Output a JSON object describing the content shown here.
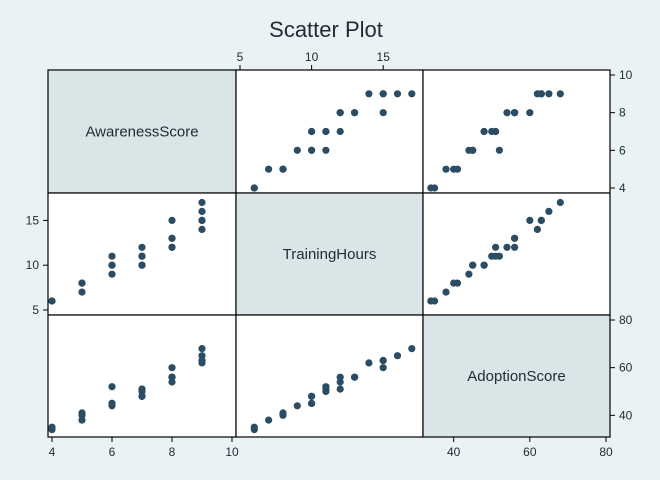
{
  "chart_data": {
    "type": "scatter",
    "title": "Scatter Plot",
    "variables": [
      {
        "name": "AwarenessScore",
        "range": [
          4,
          10
        ],
        "ticks": [
          4,
          6,
          8,
          10
        ]
      },
      {
        "name": "TrainingHours",
        "range": [
          5,
          17.5
        ],
        "ticks": [
          5,
          10,
          15
        ]
      },
      {
        "name": "AdoptionScore",
        "range": [
          33,
          80
        ],
        "ticks": [
          40,
          60,
          80
        ]
      }
    ],
    "axis_labels": {
      "top": {
        "variable": 1,
        "ticks": [
          5,
          10,
          15
        ]
      },
      "right_top": {
        "variable": 0,
        "ticks": [
          4,
          6,
          8,
          10
        ]
      },
      "left_middle": {
        "variable": 1,
        "ticks": [
          5,
          10,
          15
        ]
      },
      "right_bottom": {
        "variable": 2,
        "ticks": [
          40,
          60,
          80
        ]
      },
      "bottom_left": {
        "variable": 0,
        "ticks": [
          4,
          6,
          8,
          10
        ]
      },
      "bottom_right": {
        "variable": 2,
        "ticks": [
          40,
          60,
          80
        ]
      }
    },
    "points": [
      {
        "AwarenessScore": 4,
        "TrainingHours": 6,
        "AdoptionScore": 34
      },
      {
        "AwarenessScore": 4,
        "TrainingHours": 6,
        "AdoptionScore": 35
      },
      {
        "AwarenessScore": 5,
        "TrainingHours": 7,
        "AdoptionScore": 38
      },
      {
        "AwarenessScore": 5,
        "TrainingHours": 8,
        "AdoptionScore": 40
      },
      {
        "AwarenessScore": 5,
        "TrainingHours": 8,
        "AdoptionScore": 41
      },
      {
        "AwarenessScore": 6,
        "TrainingHours": 9,
        "AdoptionScore": 44
      },
      {
        "AwarenessScore": 6,
        "TrainingHours": 10,
        "AdoptionScore": 45
      },
      {
        "AwarenessScore": 6,
        "TrainingHours": 10,
        "AdoptionScore": 45
      },
      {
        "AwarenessScore": 6,
        "TrainingHours": 11,
        "AdoptionScore": 52
      },
      {
        "AwarenessScore": 7,
        "TrainingHours": 10,
        "AdoptionScore": 48
      },
      {
        "AwarenessScore": 7,
        "TrainingHours": 10,
        "AdoptionScore": 48
      },
      {
        "AwarenessScore": 7,
        "TrainingHours": 11,
        "AdoptionScore": 50
      },
      {
        "AwarenessScore": 7,
        "TrainingHours": 11,
        "AdoptionScore": 51
      },
      {
        "AwarenessScore": 7,
        "TrainingHours": 12,
        "AdoptionScore": 51
      },
      {
        "AwarenessScore": 8,
        "TrainingHours": 12,
        "AdoptionScore": 54
      },
      {
        "AwarenessScore": 8,
        "TrainingHours": 12,
        "AdoptionScore": 56
      },
      {
        "AwarenessScore": 8,
        "TrainingHours": 13,
        "AdoptionScore": 56
      },
      {
        "AwarenessScore": 8,
        "TrainingHours": 13,
        "AdoptionScore": 56
      },
      {
        "AwarenessScore": 8,
        "TrainingHours": 15,
        "AdoptionScore": 60
      },
      {
        "AwarenessScore": 9,
        "TrainingHours": 14,
        "AdoptionScore": 62
      },
      {
        "AwarenessScore": 9,
        "TrainingHours": 15,
        "AdoptionScore": 63
      },
      {
        "AwarenessScore": 9,
        "TrainingHours": 15,
        "AdoptionScore": 63
      },
      {
        "AwarenessScore": 9,
        "TrainingHours": 16,
        "AdoptionScore": 65
      },
      {
        "AwarenessScore": 9,
        "TrainingHours": 17,
        "AdoptionScore": 68
      }
    ],
    "colors": {
      "background": "#eaf2f3",
      "plot_background": "#ffffff",
      "diagonal_background": "#dae5e8",
      "marker": "#2b4c63",
      "frame": "#000000",
      "text": "#1e2a35"
    }
  }
}
